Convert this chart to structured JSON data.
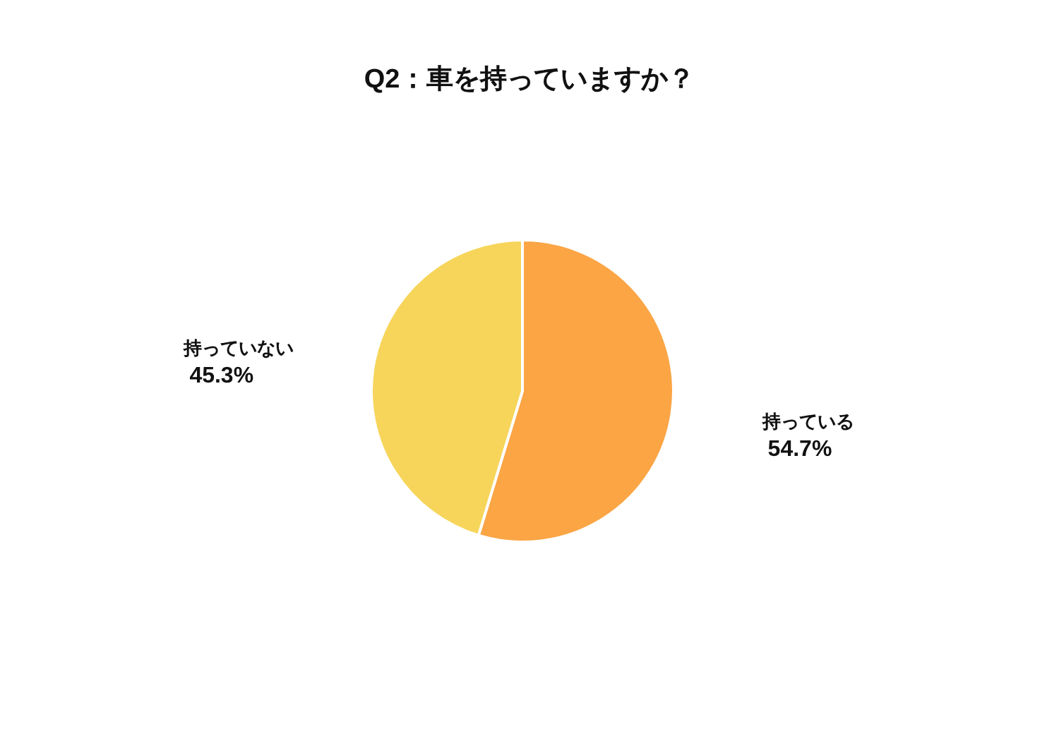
{
  "chart_data": {
    "type": "pie",
    "title": "Q2：車を持っていますか？",
    "categories": [
      "持っている",
      "持っていない"
    ],
    "values": [
      54.7,
      45.3
    ],
    "value_labels": [
      "54.7%",
      "45.3%"
    ],
    "colors": [
      "#fba545",
      "#f6d55a"
    ],
    "legend": false
  }
}
